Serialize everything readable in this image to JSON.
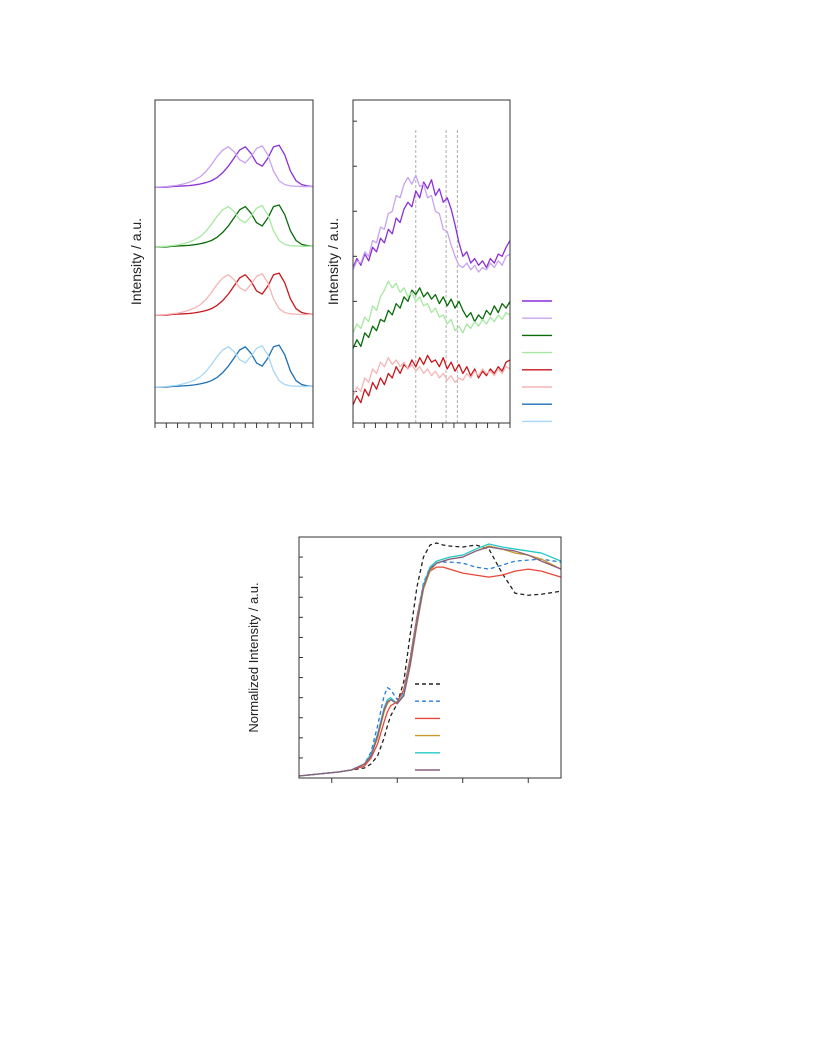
{
  "chart_data": [
    {
      "type": "line",
      "ylabel": "Intensity / a.u.",
      "x": [
        0,
        0.5,
        1,
        1.5,
        2,
        2.5,
        3,
        3.5,
        4,
        4.5,
        5,
        5.5,
        6,
        6.5,
        7,
        7.5,
        8,
        8.5,
        9,
        9.5,
        10,
        10.5,
        11,
        11.5,
        12,
        12.5,
        13,
        13.5,
        14
      ],
      "xlim": [
        0,
        14
      ],
      "ylim": [
        0,
        10
      ],
      "xticks": [
        {
          "value": 0,
          "label": null
        },
        {
          "value": 1,
          "label": null
        },
        {
          "value": 2,
          "label": null
        },
        {
          "value": 3,
          "label": null
        },
        {
          "value": 4,
          "label": null
        },
        {
          "value": 5,
          "label": null
        },
        {
          "value": 6,
          "label": null
        },
        {
          "value": 7,
          "label": null
        },
        {
          "value": 8,
          "label": null
        },
        {
          "value": 9,
          "label": null
        },
        {
          "value": 10,
          "label": null
        },
        {
          "value": 11,
          "label": null
        },
        {
          "value": 12,
          "label": null
        },
        {
          "value": 13,
          "label": null
        },
        {
          "value": 14,
          "label": null
        }
      ],
      "legend": true,
      "series": [
        {
          "color": "#8b2fd6",
          "values": [
            7.3,
            7.3,
            7.3,
            7.32,
            7.33,
            7.34,
            7.35,
            7.37,
            7.4,
            7.44,
            7.5,
            7.6,
            7.75,
            7.95,
            8.2,
            8.45,
            8.55,
            8.35,
            8.05,
            7.95,
            8.2,
            8.55,
            8.6,
            8.3,
            7.8,
            7.5,
            7.38,
            7.34,
            7.32
          ]
        },
        {
          "color": "#c9a3ef",
          "values": [
            7.3,
            7.31,
            7.32,
            7.34,
            7.36,
            7.4,
            7.45,
            7.52,
            7.62,
            7.78,
            8.0,
            8.25,
            8.45,
            8.55,
            8.4,
            8.15,
            8.05,
            8.25,
            8.5,
            8.58,
            8.3,
            7.8,
            7.5,
            7.38,
            7.34,
            7.33,
            7.32,
            7.32,
            7.32
          ]
        },
        {
          "color": "#0a6b0a",
          "values": [
            5.45,
            5.45,
            5.45,
            5.47,
            5.48,
            5.49,
            5.5,
            5.52,
            5.55,
            5.59,
            5.65,
            5.75,
            5.9,
            6.1,
            6.35,
            6.6,
            6.7,
            6.5,
            6.2,
            6.1,
            6.35,
            6.7,
            6.75,
            6.45,
            5.95,
            5.65,
            5.53,
            5.49,
            5.47
          ]
        },
        {
          "color": "#a6e8a0",
          "values": [
            5.45,
            5.46,
            5.47,
            5.49,
            5.51,
            5.55,
            5.6,
            5.67,
            5.77,
            5.93,
            6.15,
            6.4,
            6.6,
            6.7,
            6.55,
            6.3,
            6.2,
            6.4,
            6.65,
            6.73,
            6.45,
            5.95,
            5.65,
            5.53,
            5.49,
            5.48,
            5.47,
            5.47,
            5.47
          ]
        },
        {
          "color": "#c8161b",
          "values": [
            3.34,
            3.34,
            3.34,
            3.36,
            3.37,
            3.38,
            3.39,
            3.41,
            3.44,
            3.48,
            3.54,
            3.64,
            3.79,
            3.99,
            4.24,
            4.49,
            4.59,
            4.39,
            4.09,
            3.99,
            4.24,
            4.59,
            4.64,
            4.34,
            3.84,
            3.54,
            3.42,
            3.38,
            3.36
          ]
        },
        {
          "color": "#f5b5b5",
          "values": [
            3.34,
            3.35,
            3.36,
            3.38,
            3.4,
            3.44,
            3.49,
            3.56,
            3.66,
            3.82,
            4.04,
            4.29,
            4.49,
            4.59,
            4.44,
            4.19,
            4.09,
            4.29,
            4.54,
            4.62,
            4.34,
            3.84,
            3.54,
            3.42,
            3.38,
            3.37,
            3.36,
            3.36,
            3.36
          ]
        },
        {
          "color": "#1f6fb4",
          "values": [
            1.11,
            1.11,
            1.11,
            1.13,
            1.14,
            1.15,
            1.16,
            1.18,
            1.21,
            1.25,
            1.31,
            1.41,
            1.56,
            1.76,
            2.01,
            2.26,
            2.36,
            2.16,
            1.86,
            1.76,
            2.01,
            2.36,
            2.41,
            2.11,
            1.61,
            1.31,
            1.19,
            1.15,
            1.13
          ]
        },
        {
          "color": "#a8d8f5",
          "values": [
            1.11,
            1.12,
            1.13,
            1.15,
            1.17,
            1.21,
            1.26,
            1.33,
            1.43,
            1.59,
            1.81,
            2.06,
            2.26,
            2.36,
            2.21,
            1.96,
            1.86,
            2.06,
            2.31,
            2.39,
            2.11,
            1.61,
            1.31,
            1.19,
            1.15,
            1.14,
            1.13,
            1.13,
            1.13
          ]
        }
      ]
    },
    {
      "type": "line",
      "ylabel": "Intensity / a.u.",
      "x": [
        0,
        0.35,
        0.7,
        1.05,
        1.4,
        1.75,
        2.1,
        2.45,
        2.8,
        3.15,
        3.5,
        3.85,
        4.2,
        4.55,
        4.9,
        5.25,
        5.6,
        5.95,
        6.3,
        6.65,
        7,
        7.35,
        7.7,
        8.05,
        8.4,
        8.75,
        9.1,
        9.45,
        9.8,
        10.15,
        10.5,
        10.85,
        11.2,
        11.55,
        11.9,
        12.25,
        12.6,
        12.95,
        13.3,
        13.65,
        14
      ],
      "xlim": [
        0,
        14
      ],
      "ylim": [
        -0.7,
        6.47
      ],
      "xticks": [
        {
          "value": 0,
          "label": null
        },
        {
          "value": 1,
          "label": null
        },
        {
          "value": 2,
          "label": null
        },
        {
          "value": 3,
          "label": null
        },
        {
          "value": 4,
          "label": null
        },
        {
          "value": 5,
          "label": null
        },
        {
          "value": 6,
          "label": null
        },
        {
          "value": 7,
          "label": null
        },
        {
          "value": 8,
          "label": null
        },
        {
          "value": 9,
          "label": null
        },
        {
          "value": 10,
          "label": null
        },
        {
          "value": 11,
          "label": null
        },
        {
          "value": 12,
          "label": null
        },
        {
          "value": 13,
          "label": null
        },
        {
          "value": 14,
          "label": null
        }
      ],
      "yticks": [
        {
          "value": 0,
          "label": null
        },
        {
          "value": 1,
          "label": null
        },
        {
          "value": 2,
          "label": null
        },
        {
          "value": 3,
          "label": null
        },
        {
          "value": 4,
          "label": null
        },
        {
          "value": 5,
          "label": null
        },
        {
          "value": 6,
          "label": null
        }
      ],
      "reference_lines_x": [
        5.6,
        8.3,
        9.3
      ],
      "series": [
        {
          "color": "#8b2fd6",
          "values": [
            2.75,
            2.95,
            2.8,
            3.05,
            2.9,
            3.2,
            3.1,
            3.4,
            3.3,
            3.6,
            3.5,
            3.85,
            3.75,
            4.05,
            4.2,
            4.1,
            4.45,
            4.3,
            4.65,
            4.5,
            4.7,
            4.35,
            4.5,
            4.2,
            4.3,
            4.05,
            3.7,
            3.3,
            3.0,
            3.1,
            2.85,
            2.95,
            2.8,
            2.9,
            2.75,
            2.95,
            2.85,
            3.05,
            3.0,
            3.2,
            3.35
          ]
        },
        {
          "color": "#c9a3ef",
          "values": [
            2.7,
            2.9,
            2.85,
            3.1,
            3.0,
            3.35,
            3.3,
            3.65,
            3.6,
            3.95,
            4.0,
            4.35,
            4.3,
            4.6,
            4.75,
            4.6,
            4.8,
            4.55,
            4.6,
            4.3,
            4.35,
            4.0,
            3.95,
            3.6,
            3.55,
            3.25,
            3.0,
            2.8,
            2.75,
            2.85,
            2.7,
            2.8,
            2.65,
            2.75,
            2.7,
            2.85,
            2.75,
            2.9,
            2.8,
            3.0,
            3.05
          ]
        },
        {
          "color": "#0a6b0a",
          "values": [
            0.95,
            1.15,
            1.0,
            1.3,
            1.2,
            1.45,
            1.35,
            1.6,
            1.55,
            1.8,
            1.7,
            1.95,
            1.85,
            2.1,
            2.0,
            2.25,
            2.15,
            2.3,
            2.1,
            2.2,
            2.05,
            2.15,
            1.95,
            2.1,
            1.9,
            2.05,
            1.85,
            2.0,
            1.8,
            1.65,
            1.75,
            1.55,
            1.7,
            1.6,
            1.8,
            1.7,
            1.9,
            1.75,
            1.95,
            1.85,
            2.0
          ]
        },
        {
          "color": "#a6e8a0",
          "values": [
            1.3,
            1.5,
            1.4,
            1.65,
            1.55,
            1.9,
            1.8,
            2.1,
            2.25,
            2.45,
            2.3,
            2.4,
            2.2,
            2.3,
            2.1,
            2.2,
            2.0,
            2.1,
            1.9,
            1.95,
            1.75,
            1.85,
            1.65,
            1.7,
            1.5,
            1.6,
            1.35,
            1.45,
            1.3,
            1.5,
            1.4,
            1.55,
            1.45,
            1.6,
            1.5,
            1.65,
            1.55,
            1.7,
            1.6,
            1.75,
            1.7
          ]
        },
        {
          "color": "#c8161b",
          "values": [
            -0.3,
            -0.1,
            -0.25,
            0.05,
            -0.1,
            0.2,
            0.05,
            0.3,
            0.15,
            0.4,
            0.3,
            0.55,
            0.4,
            0.6,
            0.5,
            0.7,
            0.55,
            0.75,
            0.6,
            0.8,
            0.65,
            0.7,
            0.55,
            0.75,
            0.5,
            0.65,
            0.45,
            0.6,
            0.4,
            0.55,
            0.35,
            0.5,
            0.3,
            0.45,
            0.35,
            0.5,
            0.4,
            0.55,
            0.45,
            0.65,
            0.7
          ]
        },
        {
          "color": "#f5b5b5",
          "values": [
            -0.1,
            0.1,
            0.0,
            0.3,
            0.2,
            0.5,
            0.4,
            0.65,
            0.55,
            0.75,
            0.6,
            0.7,
            0.55,
            0.65,
            0.5,
            0.6,
            0.45,
            0.55,
            0.4,
            0.5,
            0.35,
            0.45,
            0.3,
            0.4,
            0.25,
            0.35,
            0.2,
            0.3,
            0.25,
            0.4,
            0.3,
            0.45,
            0.35,
            0.5,
            0.4,
            0.45,
            0.35,
            0.5,
            0.4,
            0.55,
            0.5
          ]
        }
      ]
    },
    {
      "type": "line",
      "ylabel": "Normalized Intensity / a.u.",
      "x": [
        -5,
        -2,
        1,
        3,
        5,
        6,
        7,
        8,
        8.5,
        9,
        10,
        11,
        12,
        13,
        14,
        15,
        16,
        17,
        18,
        20,
        22,
        24,
        26,
        28,
        30,
        32,
        35
      ],
      "xlim": [
        -5,
        35
      ],
      "ylim": [
        0,
        1.2
      ],
      "xticks": [
        {
          "value": 0,
          "label": null
        },
        {
          "value": 10,
          "label": null
        },
        {
          "value": 20,
          "label": null
        },
        {
          "value": 30,
          "label": null
        }
      ],
      "yticks": [
        {
          "value": 0,
          "label": null
        },
        {
          "value": 0.1,
          "label": null
        },
        {
          "value": 0.2,
          "label": null
        },
        {
          "value": 0.3,
          "label": null
        },
        {
          "value": 0.4,
          "label": null
        },
        {
          "value": 0.5,
          "label": null
        },
        {
          "value": 0.6,
          "label": null
        },
        {
          "value": 0.7,
          "label": null
        },
        {
          "value": 0.8,
          "label": null
        },
        {
          "value": 0.9,
          "label": null
        },
        {
          "value": 1.0,
          "label": null
        },
        {
          "value": 1.1,
          "label": null
        },
        {
          "value": 1.2,
          "label": null
        }
      ],
      "legend": true,
      "series": [
        {
          "color": "#222222",
          "line_style": "dashed",
          "values": [
            0.01,
            0.02,
            0.03,
            0.04,
            0.05,
            0.07,
            0.11,
            0.2,
            0.26,
            0.31,
            0.37,
            0.48,
            0.72,
            0.95,
            1.1,
            1.16,
            1.17,
            1.16,
            1.155,
            1.15,
            1.16,
            1.14,
            1.02,
            0.92,
            0.91,
            0.915,
            0.93
          ]
        },
        {
          "color": "#2b7bd6",
          "line_style": "dashed",
          "values": [
            0.01,
            0.02,
            0.03,
            0.04,
            0.07,
            0.13,
            0.26,
            0.41,
            0.45,
            0.44,
            0.39,
            0.43,
            0.6,
            0.8,
            0.97,
            1.05,
            1.07,
            1.075,
            1.075,
            1.07,
            1.05,
            1.04,
            1.06,
            1.08,
            1.085,
            1.09,
            1.075
          ]
        },
        {
          "color": "#e8473a",
          "line_style": "solid",
          "values": [
            0.01,
            0.02,
            0.03,
            0.04,
            0.06,
            0.1,
            0.17,
            0.28,
            0.33,
            0.36,
            0.38,
            0.44,
            0.6,
            0.8,
            0.96,
            1.03,
            1.05,
            1.05,
            1.04,
            1.02,
            1.01,
            1.0,
            1.01,
            1.03,
            1.04,
            1.03,
            1.0
          ]
        },
        {
          "color": "#cc9a2a",
          "line_style": "solid",
          "values": [
            0.01,
            0.02,
            0.03,
            0.04,
            0.07,
            0.11,
            0.2,
            0.33,
            0.37,
            0.39,
            0.37,
            0.41,
            0.56,
            0.76,
            0.94,
            1.03,
            1.07,
            1.08,
            1.09,
            1.1,
            1.13,
            1.155,
            1.14,
            1.12,
            1.11,
            1.09,
            1.04
          ]
        },
        {
          "color": "#22c8c8",
          "line_style": "solid",
          "values": [
            0.01,
            0.02,
            0.03,
            0.04,
            0.07,
            0.12,
            0.22,
            0.35,
            0.39,
            0.4,
            0.37,
            0.42,
            0.58,
            0.78,
            0.96,
            1.05,
            1.08,
            1.09,
            1.1,
            1.11,
            1.14,
            1.165,
            1.15,
            1.14,
            1.13,
            1.12,
            1.08
          ]
        },
        {
          "color": "#8a5f82",
          "line_style": "solid",
          "values": [
            0.01,
            0.02,
            0.03,
            0.04,
            0.07,
            0.11,
            0.21,
            0.34,
            0.38,
            0.39,
            0.37,
            0.41,
            0.57,
            0.77,
            0.95,
            1.04,
            1.07,
            1.08,
            1.09,
            1.1,
            1.13,
            1.15,
            1.14,
            1.13,
            1.11,
            1.08,
            1.04
          ]
        }
      ]
    }
  ]
}
